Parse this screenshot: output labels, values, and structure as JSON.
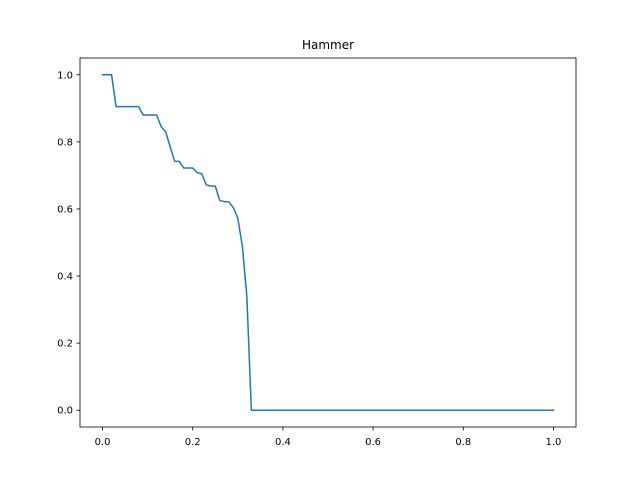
{
  "chart_data": {
    "type": "line",
    "title": "Hammer",
    "xlabel": "",
    "ylabel": "",
    "xlim": [
      -0.05,
      1.05
    ],
    "ylim": [
      -0.05,
      1.05
    ],
    "xticks": [
      0.0,
      0.2,
      0.4,
      0.6,
      0.8,
      1.0
    ],
    "yticks": [
      0.0,
      0.2,
      0.4,
      0.6,
      0.8,
      1.0
    ],
    "xtick_labels": [
      "0.0",
      "0.2",
      "0.4",
      "0.6",
      "0.8",
      "1.0"
    ],
    "ytick_labels": [
      "0.0",
      "0.2",
      "0.4",
      "0.6",
      "0.8",
      "1.0"
    ],
    "grid": false,
    "legend": "none",
    "series": [
      {
        "color": "#1f77b4",
        "x": [
          0.0,
          0.02,
          0.03,
          0.08,
          0.09,
          0.12,
          0.13,
          0.14,
          0.15,
          0.16,
          0.17,
          0.18,
          0.2,
          0.21,
          0.22,
          0.23,
          0.24,
          0.25,
          0.26,
          0.27,
          0.28,
          0.29,
          0.3,
          0.31,
          0.32,
          0.33,
          0.34,
          0.4,
          0.5,
          0.6,
          0.7,
          0.8,
          0.9,
          1.0
        ],
        "y": [
          1.0,
          1.0,
          0.905,
          0.905,
          0.88,
          0.88,
          0.845,
          0.83,
          0.785,
          0.742,
          0.742,
          0.722,
          0.722,
          0.708,
          0.705,
          0.672,
          0.668,
          0.668,
          0.625,
          0.622,
          0.621,
          0.604,
          0.572,
          0.49,
          0.34,
          0.0,
          0.0,
          0.0,
          0.0,
          0.0,
          0.0,
          0.0,
          0.0,
          0.0
        ]
      }
    ]
  }
}
